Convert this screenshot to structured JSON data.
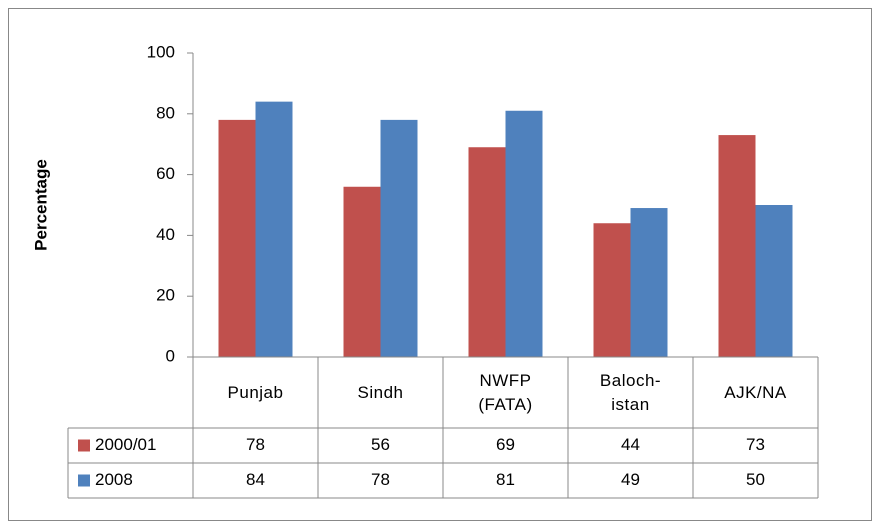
{
  "chart_data": {
    "type": "bar",
    "y_label": "Percentage",
    "categories": [
      "Punjab",
      "Sindh",
      "NWFP\n(FATA)",
      "Baloch-\nistan",
      "AJK/NA"
    ],
    "series": [
      {
        "name": "2000/01",
        "color": "#c0504d",
        "values": [
          78,
          56,
          69,
          44,
          73
        ]
      },
      {
        "name": "2008",
        "color": "#4f81bd",
        "values": [
          84,
          78,
          81,
          49,
          50
        ]
      }
    ],
    "ylim": [
      0,
      100
    ],
    "yticks": [
      0,
      20,
      40,
      60,
      80,
      100
    ],
    "data_table": true
  }
}
